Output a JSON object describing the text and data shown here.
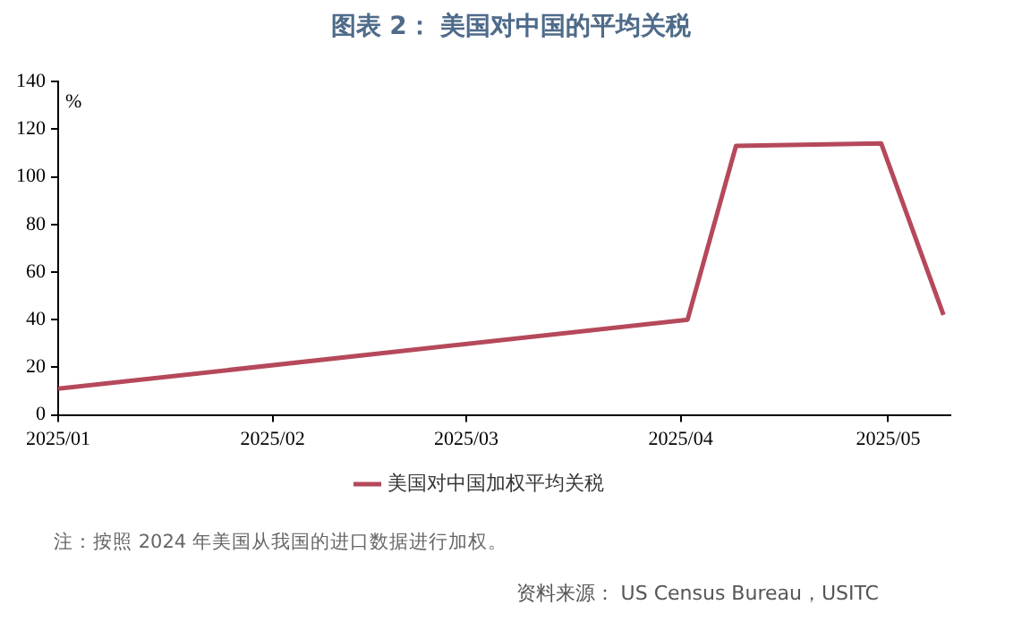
{
  "chart_data": {
    "type": "line",
    "title": "图表 2： 美国对中国的平均关税",
    "ylabel": "%",
    "x": [
      "2025-01-01",
      "2025-04-02",
      "2025-04-09",
      "2025-04-30",
      "2025-05-09"
    ],
    "series": [
      {
        "name": "美国对中国加权平均关税",
        "color": "#b5495b",
        "values": [
          11,
          40,
          113,
          114,
          42
        ]
      }
    ],
    "xlim": [
      "2025-01-01",
      "2025-05-10"
    ],
    "xticks": [
      {
        "value": "2025-01-01",
        "label": "2025/01"
      },
      {
        "value": "2025-02-01",
        "label": "2025/02"
      },
      {
        "value": "2025-03-01",
        "label": "2025/03"
      },
      {
        "value": "2025-04-01",
        "label": "2025/04"
      },
      {
        "value": "2025-05-01",
        "label": "2025/05"
      }
    ],
    "ylim": [
      0,
      140
    ],
    "yticks": [
      0,
      20,
      40,
      60,
      80,
      100,
      120,
      140
    ],
    "legend": "bottom",
    "marker": "none",
    "line_style": "solid",
    "annotations": [
      "注：按照 2024 年美国从我国的进口数据进行加权。",
      "资料来源： US Census Bureau，USITC"
    ]
  }
}
